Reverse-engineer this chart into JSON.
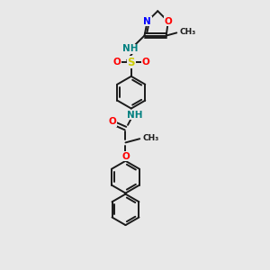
{
  "background_color": "#e8e8e8",
  "bond_color": "#1a1a1a",
  "atom_colors": {
    "N": "#0000ff",
    "O": "#ff0000",
    "S": "#cccc00",
    "H": "#008080",
    "C": "#1a1a1a"
  },
  "figsize": [
    3.0,
    3.0
  ],
  "dpi": 100,
  "lw": 1.4,
  "xlim": [
    0,
    10
  ],
  "ylim": [
    0,
    14
  ]
}
